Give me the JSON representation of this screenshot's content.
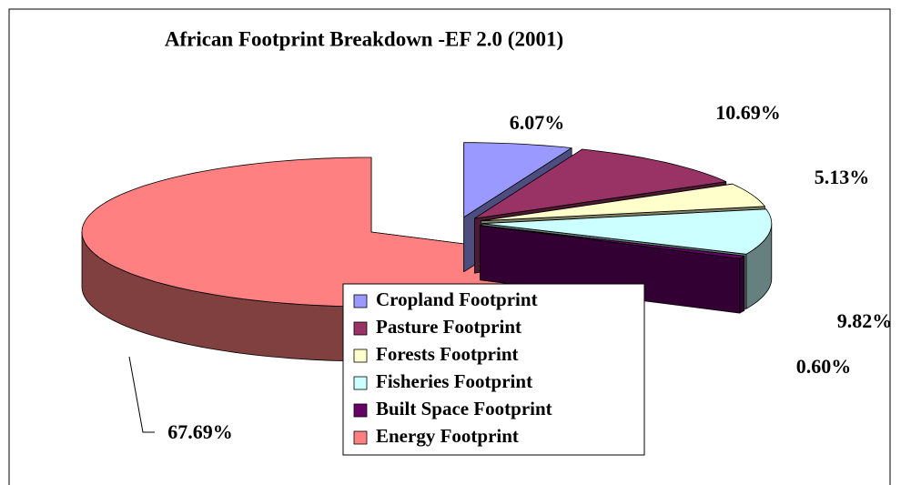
{
  "chart_data": {
    "type": "pie",
    "title": "African Footprint Breakdown -EF 2.0 (2001)",
    "categories": [
      "Cropland Footprint",
      "Pasture Footprint",
      "Forests Footprint",
      "Fisheries Footprint",
      "Built Space Footprint",
      "Energy Footprint"
    ],
    "values": [
      6.07,
      10.69,
      5.13,
      9.82,
      0.6,
      67.69
    ],
    "value_labels": [
      "6.07%",
      "10.69%",
      "5.13%",
      "9.82%",
      "0.60%",
      "67.69%"
    ],
    "colors": [
      "#9999ff",
      "#993366",
      "#ffffcc",
      "#ccffff",
      "#660066",
      "#ff8080"
    ]
  }
}
